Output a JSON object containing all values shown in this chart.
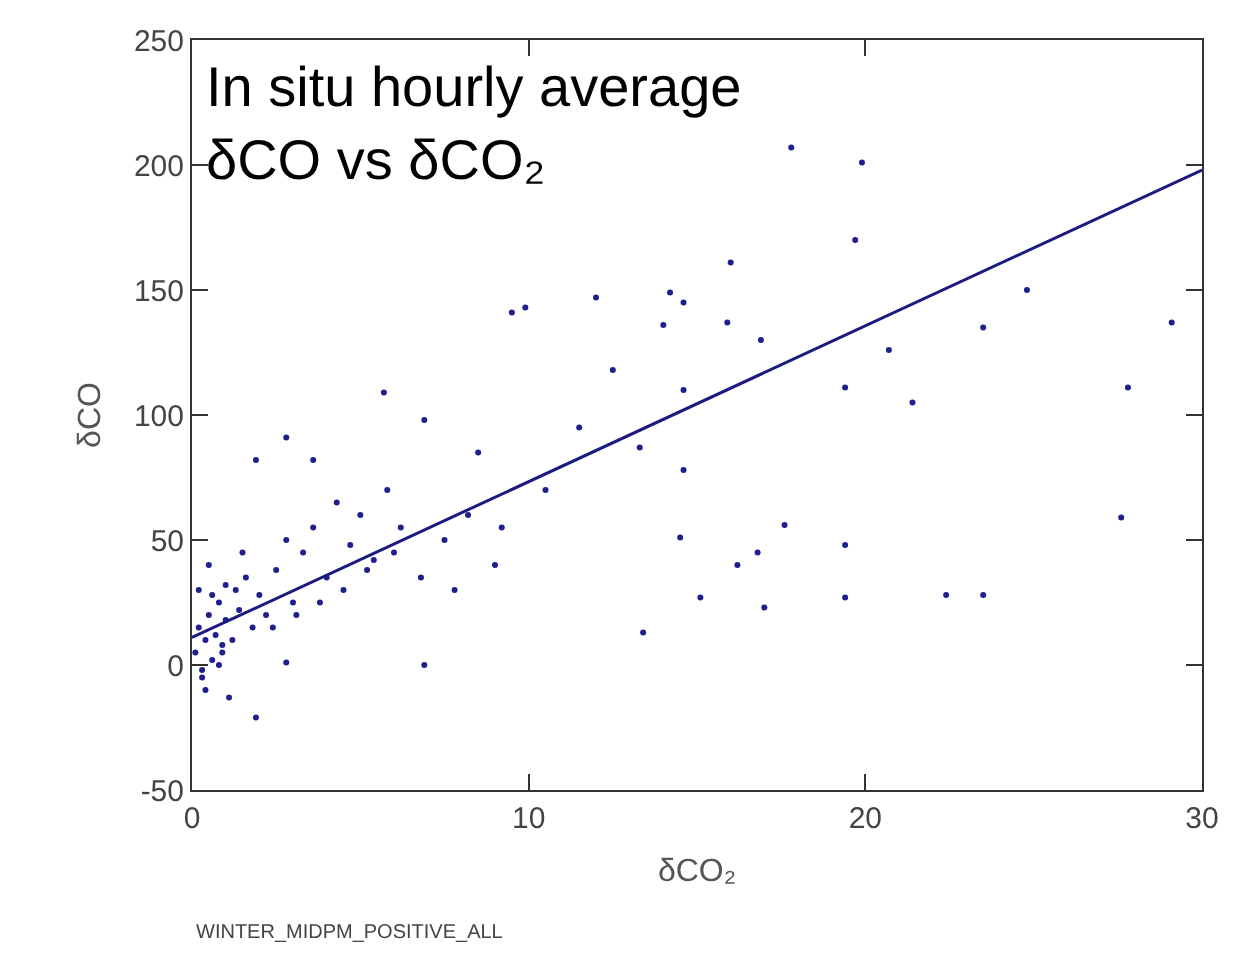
{
  "chart_data": {
    "type": "scatter",
    "title": "In situ hourly average\nδCO vs δCO₂",
    "xlabel": "δCO₂",
    "ylabel": "δCO",
    "annotations": [
      "WINTER_MIDPM_POSITIVE_ALL"
    ],
    "xlim": [
      0,
      30
    ],
    "xticks": [
      0,
      10,
      20,
      30
    ],
    "ylim": [
      -50,
      250
    ],
    "yticks": [
      -50,
      0,
      50,
      100,
      150,
      200,
      250
    ],
    "series": [
      {
        "color": "#1f1f8f",
        "marker": "circle",
        "x": [
          0.1,
          0.2,
          0.3,
          0.4,
          0.5,
          0.6,
          0.7,
          0.8,
          0.9,
          1.0,
          0.2,
          0.4,
          0.6,
          0.8,
          1.0,
          1.2,
          1.4,
          1.6,
          1.8,
          2.0,
          0.3,
          0.5,
          0.9,
          1.3,
          1.5,
          2.2,
          2.5,
          2.8,
          3.0,
          3.3,
          3.6,
          4.0,
          4.3,
          4.7,
          5.0,
          5.4,
          5.8,
          6.2,
          2.4,
          3.1,
          3.8,
          4.5,
          5.2,
          6.0,
          6.8,
          7.5,
          8.2,
          9.0,
          1.1,
          1.9,
          2.8,
          6.9,
          1.9,
          3.6,
          2.8,
          5.7,
          6.9,
          9.5,
          9.9,
          12.0,
          8.5,
          10.5,
          11.5,
          7.8,
          9.2,
          12.5,
          13.3,
          13.4,
          14.0,
          14.2,
          14.5,
          14.6,
          14.6,
          14.6,
          15.1,
          15.9,
          16.0,
          16.2,
          16.8,
          16.9,
          17.0,
          17.6,
          17.8,
          19.4,
          19.4,
          19.4,
          19.7,
          19.9,
          20.7,
          21.4,
          22.4,
          23.5,
          23.5,
          24.8,
          27.6,
          27.8,
          29.1
        ],
        "values": [
          5,
          15,
          -5,
          10,
          20,
          2,
          12,
          25,
          8,
          18,
          30,
          -10,
          28,
          0,
          32,
          10,
          22,
          35,
          15,
          28,
          -2,
          40,
          5,
          30,
          45,
          20,
          38,
          50,
          25,
          45,
          55,
          35,
          65,
          48,
          60,
          42,
          70,
          55,
          15,
          20,
          25,
          30,
          38,
          45,
          35,
          50,
          60,
          40,
          -13,
          -21,
          1,
          0,
          82,
          82,
          91,
          109,
          98,
          141,
          143,
          147,
          85,
          70,
          95,
          30,
          55,
          118,
          87,
          13,
          136,
          149,
          51,
          110,
          78,
          145,
          27,
          137,
          161,
          40,
          45,
          130,
          23,
          56,
          207,
          111,
          48,
          27,
          170,
          201,
          126,
          105,
          28,
          135,
          28,
          150,
          59,
          111,
          137
        ]
      },
      {
        "type": "line",
        "color": "#1a1a80",
        "x": [
          0,
          30
        ],
        "values": [
          11,
          198
        ]
      }
    ]
  }
}
